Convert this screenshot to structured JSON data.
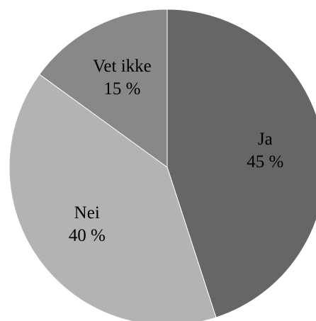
{
  "chart_data": {
    "type": "pie",
    "categories": [
      "Ja",
      "Nei",
      "Vet ikke"
    ],
    "values": [
      45,
      40,
      15
    ],
    "value_labels": [
      "45 %",
      "40 %",
      "15 %"
    ],
    "colors": [
      "#666666",
      "#b3b3b3",
      "#888888"
    ]
  }
}
